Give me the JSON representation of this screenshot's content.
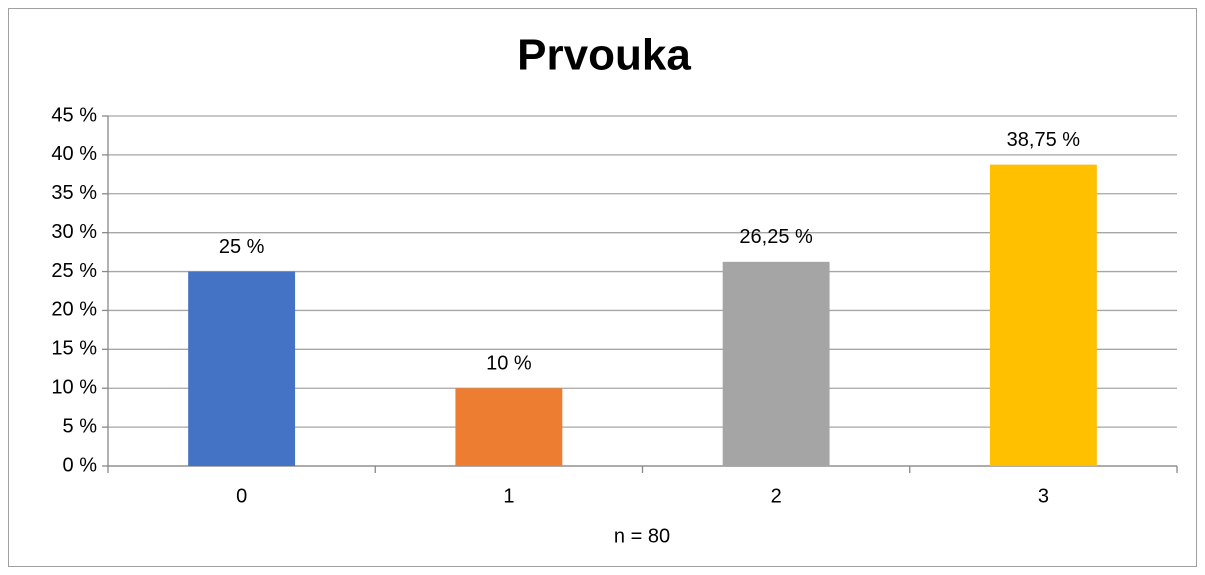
{
  "chart_data": {
    "type": "bar",
    "title": "Prvouka",
    "x_label": "n = 80",
    "categories": [
      "0",
      "1",
      "2",
      "3"
    ],
    "values": [
      25,
      10,
      26.25,
      38.75
    ],
    "value_labels": [
      "25 %",
      "10 %",
      "26,25 %",
      "38,75 %"
    ],
    "colors": [
      "#4472c4",
      "#ed7d31",
      "#a5a5a5",
      "#ffc000"
    ],
    "ylim": [
      0,
      45
    ],
    "yticks": [
      {
        "value": 0,
        "label": "0 %"
      },
      {
        "value": 5,
        "label": "5 %"
      },
      {
        "value": 10,
        "label": "10 %"
      },
      {
        "value": 15,
        "label": "15 %"
      },
      {
        "value": 20,
        "label": "20 %"
      },
      {
        "value": 25,
        "label": "25 %"
      },
      {
        "value": 30,
        "label": "30 %"
      },
      {
        "value": 35,
        "label": "35 %"
      },
      {
        "value": 40,
        "label": "40 %"
      },
      {
        "value": 45,
        "label": "45 %"
      }
    ],
    "grid": true
  }
}
